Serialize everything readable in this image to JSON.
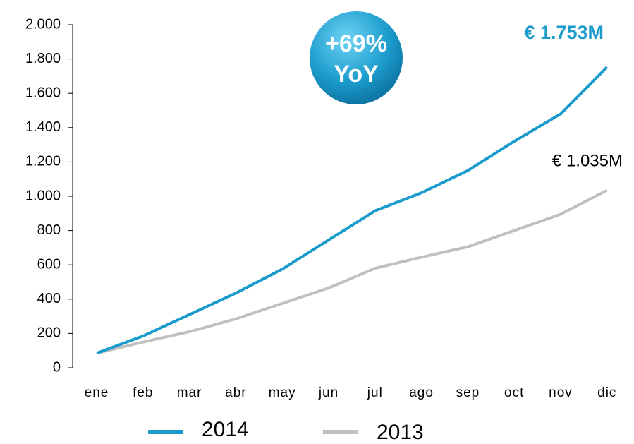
{
  "chart_data": {
    "type": "line",
    "categories": [
      "ene",
      "feb",
      "mar",
      "abr",
      "may",
      "jun",
      "jul",
      "ago",
      "sep",
      "oct",
      "nov",
      "dic"
    ],
    "series": [
      {
        "name": "2014",
        "color": "#1a9bcb",
        "values": [
          85,
          185,
          310,
          435,
          575,
          745,
          915,
          1020,
          1150,
          1320,
          1480,
          1753
        ]
      },
      {
        "name": "2013",
        "color": "#c0c0c0",
        "values": [
          85,
          150,
          210,
          285,
          375,
          465,
          580,
          645,
          705,
          800,
          895,
          1035
        ]
      }
    ],
    "ylim": [
      0,
      2000
    ],
    "yticks": [
      0,
      200,
      400,
      600,
      800,
      {
        "value": 1000,
        "label": "1.000"
      },
      {
        "value": 1200,
        "label": "1.200"
      },
      {
        "value": 1400,
        "label": "1.400"
      },
      {
        "value": 1600,
        "label": "1.600"
      },
      {
        "value": 1800,
        "label": "1.800"
      },
      {
        "value": 2000,
        "label": "2.000"
      }
    ],
    "grid": false,
    "legend": "bottom",
    "annotations": [
      "+69%",
      "YoY",
      "€ 1.753M",
      "€ 1.035M"
    ]
  }
}
